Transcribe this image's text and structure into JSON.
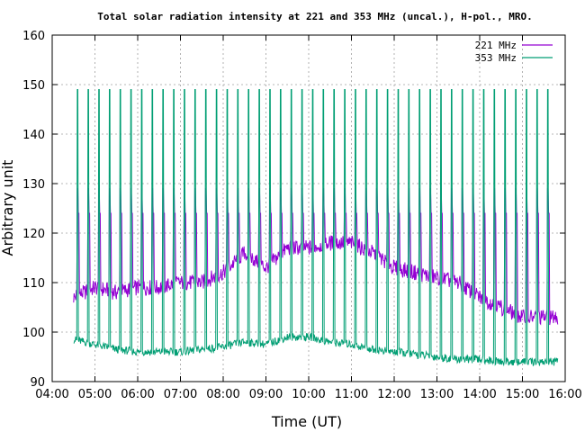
{
  "chart_data": {
    "type": "line",
    "title": "Total solar radiation intensity at 221 and 353 MHz (uncal.), H-pol., MRO.",
    "xlabel": "Time (UT)",
    "ylabel": "Arbitrary unit",
    "xlim": [
      "04:00",
      "16:00"
    ],
    "ylim": [
      90,
      160
    ],
    "x_ticks": [
      "04:00",
      "05:00",
      "06:00",
      "07:00",
      "08:00",
      "09:00",
      "10:00",
      "11:00",
      "12:00",
      "13:00",
      "14:00",
      "15:00",
      "16:00"
    ],
    "y_ticks": [
      90,
      100,
      110,
      120,
      130,
      140,
      150,
      160
    ],
    "grid": true,
    "legend_position": "top-right",
    "colors": {
      "221 MHz": "#9400d3",
      "353 MHz": "#009e73"
    },
    "x": [
      "04:30",
      "05:00",
      "05:30",
      "06:00",
      "06:30",
      "07:00",
      "07:30",
      "08:00",
      "08:30",
      "09:00",
      "09:30",
      "10:00",
      "10:30",
      "11:00",
      "11:30",
      "12:00",
      "12:30",
      "13:00",
      "13:30",
      "14:00",
      "14:30",
      "15:00",
      "15:30",
      "15:50"
    ],
    "series": [
      {
        "name": "221 MHz",
        "values": [
          107,
          109,
          108,
          109,
          109,
          110,
          110,
          112,
          116,
          113,
          117,
          117,
          118,
          118,
          116,
          113,
          112,
          111,
          110,
          107,
          105,
          103,
          103,
          103
        ]
      },
      {
        "name": "353 MHz",
        "values": [
          98.5,
          97.5,
          96.5,
          96,
          96,
          96,
          96.5,
          97,
          98,
          97.5,
          99,
          99,
          98,
          97.5,
          96.5,
          96,
          95.5,
          95,
          94.5,
          94.5,
          94,
          94,
          94,
          94
        ]
      }
    ],
    "calibration_spikes": {
      "times": [
        "04:35",
        "04:50",
        "05:05",
        "05:20",
        "05:35",
        "05:50",
        "06:05",
        "06:20",
        "06:35",
        "06:50",
        "07:05",
        "07:20",
        "07:35",
        "07:50",
        "08:05",
        "08:20",
        "08:35",
        "08:50",
        "09:05",
        "09:20",
        "09:35",
        "09:50",
        "10:05",
        "10:20",
        "10:35",
        "10:50",
        "11:05",
        "11:20",
        "11:35",
        "11:50",
        "12:05",
        "12:20",
        "12:35",
        "12:50",
        "13:05",
        "13:20",
        "13:35",
        "13:50",
        "14:05",
        "14:20",
        "14:35",
        "14:50",
        "15:05",
        "15:20",
        "15:35",
        "15:50"
      ],
      "221 MHz peak": 129,
      "221 MHz flat": 124,
      "353 MHz peak": 149
    }
  }
}
